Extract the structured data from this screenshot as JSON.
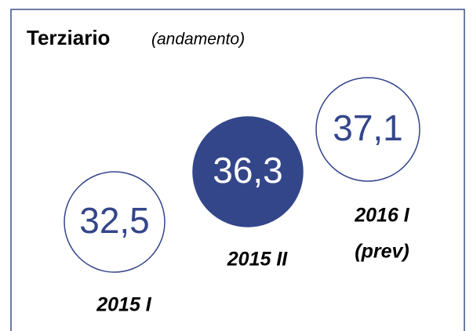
{
  "title": "Terziario",
  "subtitle": "(andamento)",
  "items": [
    {
      "value": "32,5",
      "label": [
        "2015 I"
      ]
    },
    {
      "value": "36,3",
      "label": [
        "2015 II"
      ]
    },
    {
      "value": "37,1",
      "label": [
        "2016 I",
        "(prev)"
      ]
    }
  ]
}
